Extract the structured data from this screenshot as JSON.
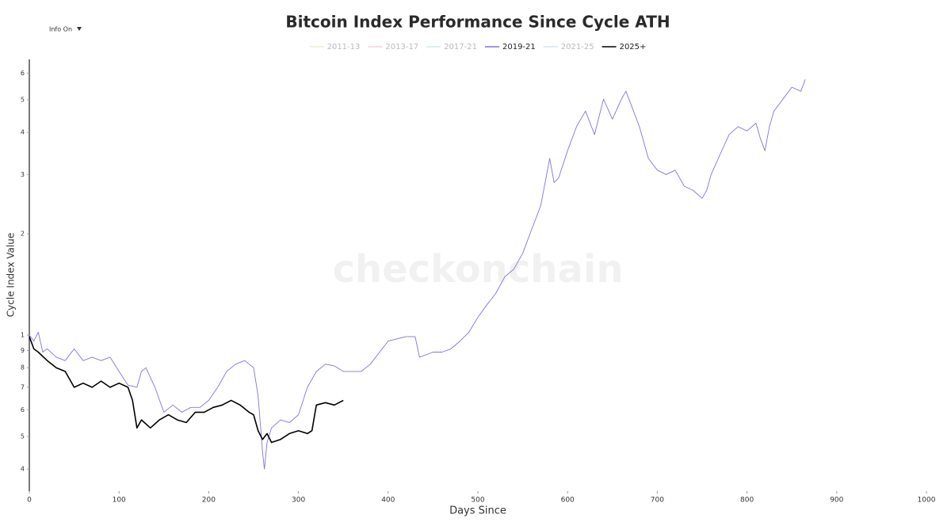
{
  "ui": {
    "dropdown": "Info On"
  },
  "chart_data": {
    "type": "line",
    "title": "Bitcoin Index Performance Since Cycle ATH",
    "watermark": "checkonchain",
    "xlabel": "Days Since",
    "ylabel": "Cycle Index Value",
    "xlim": [
      0,
      1000
    ],
    "xticks": [
      0,
      100,
      200,
      300,
      400,
      500,
      600,
      700,
      800,
      900,
      1000
    ],
    "ylim": [
      0.344,
      6.59
    ],
    "yscale": "log",
    "yticks": [
      {
        "value": 0.4,
        "label": "4"
      },
      {
        "value": 0.5,
        "label": "5"
      },
      {
        "value": 0.6,
        "label": "6"
      },
      {
        "value": 0.7,
        "label": "7"
      },
      {
        "value": 0.8,
        "label": "8"
      },
      {
        "value": 0.9,
        "label": "9"
      },
      1,
      2,
      3,
      4,
      5,
      6
    ],
    "legend": "top",
    "series": [
      {
        "name": "2011-13",
        "color": "#e6ecc0",
        "visible": false,
        "x": [],
        "values": []
      },
      {
        "name": "2013-17",
        "color": "#f2c6d4",
        "visible": false,
        "x": [],
        "values": []
      },
      {
        "name": "2017-21",
        "color": "#c6e6ee",
        "visible": false,
        "x": [],
        "values": []
      },
      {
        "name": "2019-21",
        "color": "#7f74e2",
        "visible": true,
        "x": [
          0,
          5,
          10,
          15,
          20,
          30,
          40,
          50,
          60,
          70,
          80,
          90,
          100,
          110,
          120,
          125,
          130,
          140,
          150,
          160,
          170,
          180,
          190,
          200,
          210,
          220,
          230,
          240,
          250,
          255,
          260,
          262,
          265,
          270,
          280,
          290,
          300,
          310,
          320,
          330,
          340,
          350,
          360,
          370,
          380,
          400,
          420,
          430,
          435,
          450,
          460,
          470,
          480,
          490,
          500,
          510,
          520,
          530,
          540,
          550,
          560,
          570,
          575,
          580,
          585,
          590,
          600,
          610,
          620,
          630,
          640,
          650,
          660,
          665,
          670,
          680,
          690,
          700,
          710,
          720,
          730,
          740,
          750,
          755,
          760,
          770,
          780,
          790,
          800,
          810,
          815,
          820,
          825,
          830,
          840,
          850,
          860,
          865
        ],
        "values": [
          1.0,
          0.96,
          1.02,
          0.89,
          0.91,
          0.86,
          0.84,
          0.91,
          0.84,
          0.86,
          0.84,
          0.86,
          0.78,
          0.71,
          0.7,
          0.78,
          0.8,
          0.7,
          0.59,
          0.62,
          0.59,
          0.61,
          0.61,
          0.64,
          0.7,
          0.78,
          0.82,
          0.84,
          0.8,
          0.66,
          0.45,
          0.4,
          0.48,
          0.53,
          0.56,
          0.55,
          0.58,
          0.7,
          0.78,
          0.82,
          0.81,
          0.78,
          0.78,
          0.78,
          0.82,
          0.96,
          0.99,
          0.99,
          0.86,
          0.89,
          0.89,
          0.91,
          0.96,
          1.02,
          1.13,
          1.23,
          1.33,
          1.49,
          1.57,
          1.75,
          2.06,
          2.42,
          2.84,
          3.35,
          2.84,
          2.93,
          3.53,
          4.16,
          4.63,
          3.94,
          5.02,
          4.38,
          5.02,
          5.3,
          4.9,
          4.16,
          3.35,
          3.09,
          3.0,
          3.09,
          2.77,
          2.69,
          2.55,
          2.69,
          3.0,
          3.44,
          3.94,
          4.16,
          4.04,
          4.26,
          3.83,
          3.53,
          4.16,
          4.63,
          5.02,
          5.45,
          5.3,
          5.75
        ]
      },
      {
        "name": "2021-25",
        "color": "#c6e2e6",
        "visible": false,
        "x": [],
        "values": []
      },
      {
        "name": "2025+",
        "color": "#000000",
        "visible": true,
        "x": [
          0,
          5,
          10,
          20,
          30,
          40,
          50,
          60,
          70,
          80,
          90,
          100,
          110,
          115,
          120,
          125,
          135,
          145,
          155,
          165,
          175,
          185,
          195,
          205,
          215,
          225,
          235,
          245,
          250,
          255,
          260,
          265,
          270,
          280,
          290,
          300,
          310,
          315,
          320,
          330,
          340,
          350
        ],
        "values": [
          0.99,
          0.91,
          0.89,
          0.84,
          0.8,
          0.78,
          0.7,
          0.72,
          0.7,
          0.73,
          0.7,
          0.72,
          0.7,
          0.64,
          0.53,
          0.56,
          0.53,
          0.56,
          0.58,
          0.56,
          0.55,
          0.59,
          0.59,
          0.61,
          0.62,
          0.64,
          0.62,
          0.59,
          0.58,
          0.52,
          0.49,
          0.51,
          0.48,
          0.49,
          0.51,
          0.52,
          0.51,
          0.52,
          0.62,
          0.63,
          0.62,
          0.64
        ]
      }
    ]
  }
}
